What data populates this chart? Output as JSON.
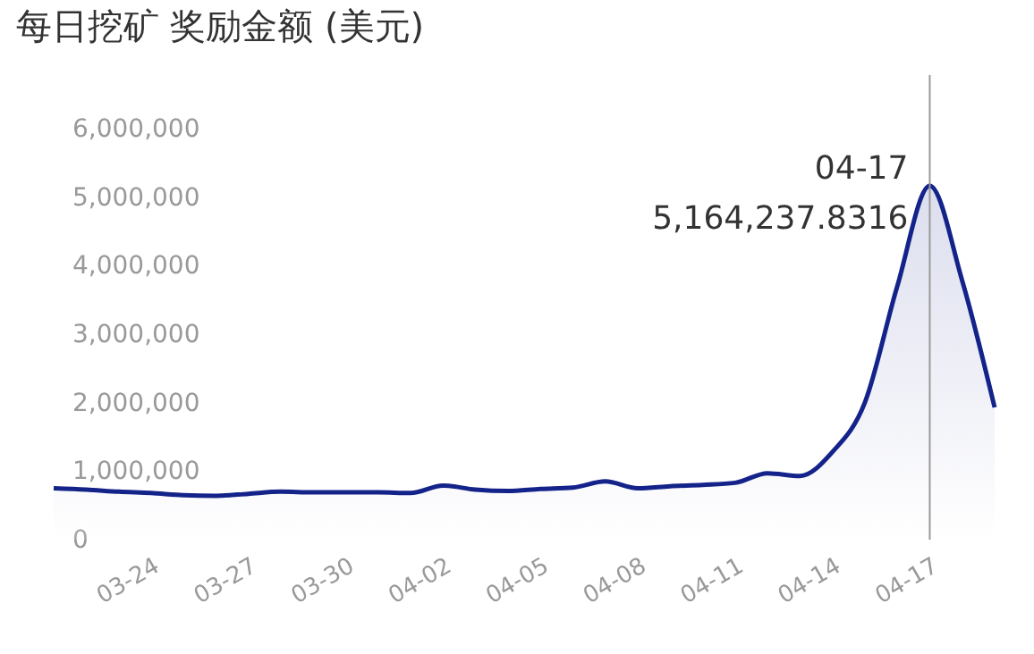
{
  "chart_data": {
    "type": "area",
    "title": "每日挖矿 奖励金额 (美元)",
    "categories": [
      null,
      null,
      null,
      "03-24",
      null,
      null,
      "03-27",
      null,
      null,
      "03-30",
      null,
      null,
      "04-02",
      null,
      null,
      "04-05",
      null,
      null,
      "04-08",
      null,
      null,
      "04-11",
      null,
      null,
      "04-14",
      null,
      null,
      "04-17",
      null,
      null
    ],
    "series": [
      {
        "color": "#14238a",
        "values": [
          750000,
          730000,
          700000,
          680000,
          650000,
          640000,
          670000,
          700000,
          690000,
          690000,
          690000,
          680000,
          790000,
          730000,
          710000,
          740000,
          760000,
          850000,
          750000,
          780000,
          800000,
          830000,
          970000,
          930000,
          1280000,
          2000000,
          3700000,
          5164237.8316,
          3780000,
          1930000
        ]
      }
    ],
    "ylim": [
      0,
      6000000
    ],
    "yticks": [
      {
        "value": 0,
        "label": "0"
      },
      {
        "value": 1000000,
        "label": "1,000,000"
      },
      {
        "value": 2000000,
        "label": "2,000,000"
      },
      {
        "value": 3000000,
        "label": "3,000,000"
      },
      {
        "value": 4000000,
        "label": "4,000,000"
      },
      {
        "value": 5000000,
        "label": "5,000,000"
      },
      {
        "value": 6000000,
        "label": "6,000,000"
      }
    ],
    "grid": false,
    "ref_lines": [
      {
        "axis": "x",
        "value": "04-17",
        "color": "#999999"
      }
    ],
    "annotations": [
      {
        "text": "04-17\n5,164,237.8316",
        "x": "04-17",
        "y": 5164237.8316
      }
    ]
  }
}
